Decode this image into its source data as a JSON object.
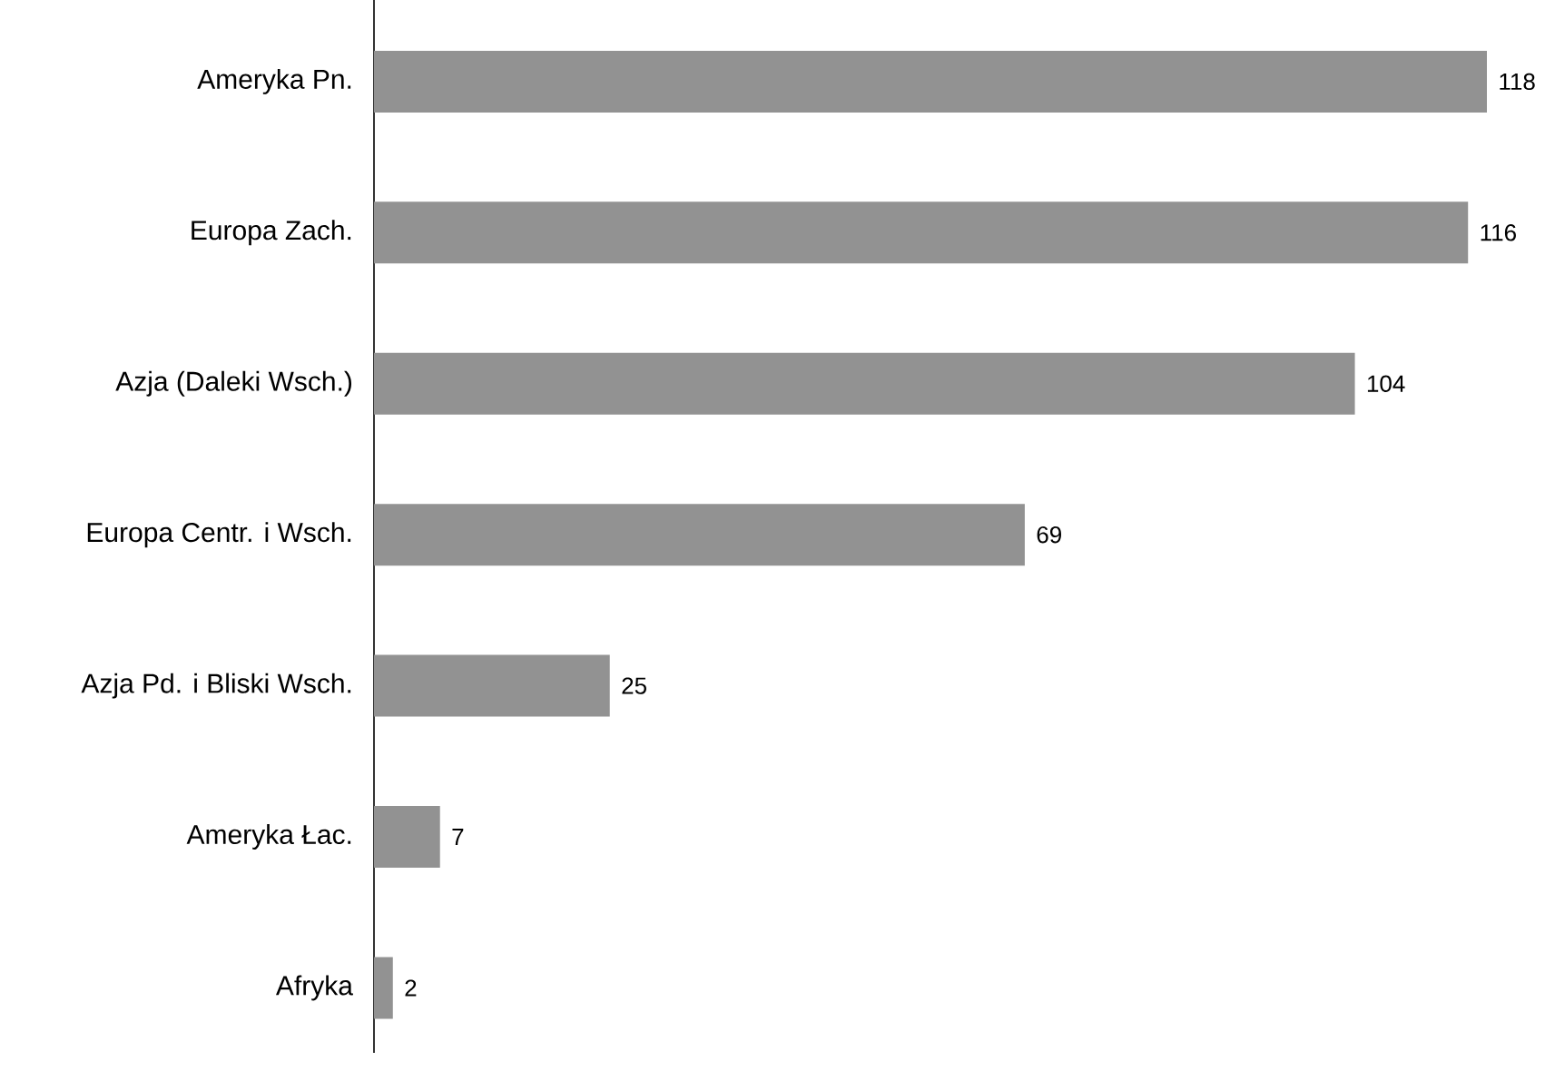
{
  "chart_data": {
    "type": "bar",
    "orientation": "horizontal",
    "categories": [
      "Ameryka Pn.",
      "Europa Zach.",
      "Azja (Daleki Wsch.)",
      "Europa Centr. i Wsch.",
      "Azja Pd. i Bliski Wsch.",
      "Ameryka Łac.",
      "Afryka"
    ],
    "values": [
      118,
      116,
      104,
      69,
      25,
      7,
      2
    ],
    "color": "#929292",
    "data_labels": true
  }
}
